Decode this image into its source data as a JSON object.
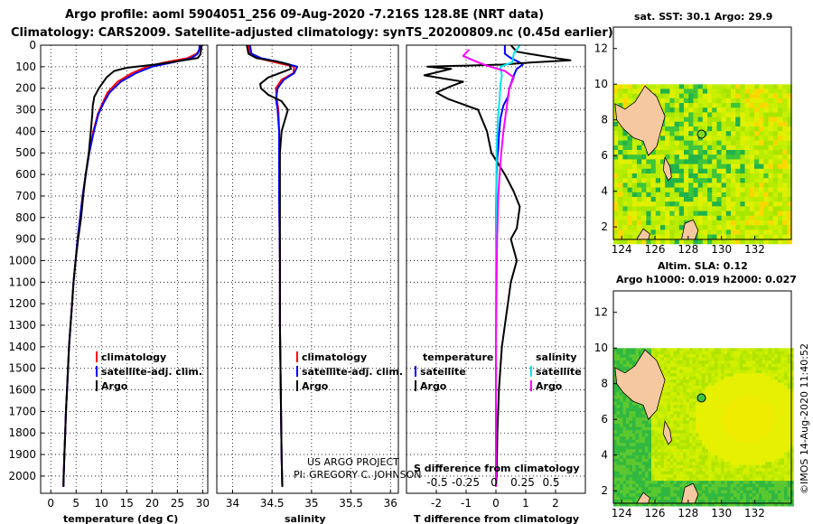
{
  "header": {
    "title_line1": "Argo profile: aoml 5904051_256 09-Aug-2020 -7.216S 128.8E (NRT data)",
    "title_line2": "Climatology: CARS2009. Satellite-adjusted climatology: synTS_20200809.nc (0.45d earlier)"
  },
  "colors": {
    "climatology": "#ff0000",
    "satellite_adj": "#0000ff",
    "argo": "#000000",
    "salinity_satellite": "#00e5ee",
    "salinity_argo": "#ff00ff",
    "land": "#f5c8a0",
    "no_data": "#ffffff"
  },
  "credits": {
    "project": "US ARGO PROJECT",
    "pi": "PI: GREGORY C. JOHNSON",
    "stamp": "©IMOS 14-Aug-2020 11:40:52"
  },
  "chart_data": [
    {
      "type": "line",
      "id": "temperature",
      "xlabel": "temperature (deg C)",
      "ylabel": "depth",
      "xlim": [
        -2,
        31
      ],
      "ylim": [
        2080,
        0
      ],
      "xticks": [
        0,
        5,
        10,
        15,
        20,
        25,
        30
      ],
      "yticks": [
        0,
        100,
        200,
        300,
        400,
        500,
        600,
        700,
        800,
        900,
        1000,
        1100,
        1200,
        1300,
        1400,
        1500,
        1600,
        1700,
        1800,
        1900,
        2000
      ],
      "legend": [
        "climatology",
        "satellite-adj. clim.",
        "Argo"
      ],
      "series": [
        {
          "name": "climatology",
          "color": "#ff0000",
          "points": [
            [
              29.6,
              0
            ],
            [
              29.4,
              20
            ],
            [
              28.8,
              40
            ],
            [
              27.0,
              60
            ],
            [
              22.5,
              80
            ],
            [
              19.0,
              100
            ],
            [
              16.0,
              130
            ],
            [
              13.2,
              170
            ],
            [
              11.2,
              220
            ],
            [
              10.2,
              270
            ],
            [
              9.3,
              320
            ],
            [
              8.4,
              400
            ],
            [
              7.6,
              500
            ],
            [
              6.9,
              600
            ],
            [
              6.3,
              700
            ],
            [
              5.8,
              800
            ],
            [
              5.3,
              900
            ],
            [
              4.9,
              1000
            ],
            [
              4.5,
              1100
            ],
            [
              4.2,
              1200
            ],
            [
              3.9,
              1300
            ],
            [
              3.6,
              1400
            ],
            [
              3.4,
              1500
            ],
            [
              3.2,
              1600
            ],
            [
              3.0,
              1700
            ],
            [
              2.85,
              1800
            ],
            [
              2.7,
              1900
            ],
            [
              2.55,
              2000
            ],
            [
              2.5,
              2050
            ]
          ]
        },
        {
          "name": "satellite-adj. clim.",
          "color": "#0000ff",
          "points": [
            [
              29.4,
              0
            ],
            [
              29.3,
              20
            ],
            [
              29.0,
              40
            ],
            [
              27.8,
              60
            ],
            [
              24.0,
              80
            ],
            [
              20.0,
              100
            ],
            [
              16.8,
              130
            ],
            [
              13.8,
              170
            ],
            [
              11.6,
              220
            ],
            [
              10.4,
              270
            ],
            [
              9.4,
              320
            ],
            [
              8.5,
              400
            ],
            [
              7.6,
              500
            ],
            [
              6.9,
              600
            ],
            [
              6.3,
              700
            ],
            [
              5.8,
              800
            ],
            [
              5.3,
              900
            ],
            [
              4.9,
              1000
            ],
            [
              4.5,
              1100
            ],
            [
              4.2,
              1200
            ],
            [
              3.9,
              1300
            ],
            [
              3.6,
              1400
            ],
            [
              3.4,
              1500
            ],
            [
              3.2,
              1600
            ],
            [
              3.0,
              1700
            ],
            [
              2.85,
              1800
            ],
            [
              2.7,
              1900
            ],
            [
              2.55,
              2000
            ],
            [
              2.5,
              2050
            ]
          ]
        },
        {
          "name": "Argo",
          "color": "#000000",
          "points": [
            [
              29.8,
              0
            ],
            [
              29.7,
              20
            ],
            [
              29.5,
              45
            ],
            [
              29.0,
              60
            ],
            [
              23.5,
              80
            ],
            [
              20.5,
              90
            ],
            [
              15.0,
              105
            ],
            [
              12.5,
              120
            ],
            [
              11.0,
              150
            ],
            [
              9.5,
              200
            ],
            [
              8.6,
              240
            ],
            [
              8.3,
              280
            ],
            [
              8.2,
              320
            ],
            [
              7.9,
              400
            ],
            [
              7.5,
              500
            ],
            [
              6.9,
              600
            ],
            [
              6.4,
              700
            ],
            [
              6.0,
              800
            ],
            [
              5.4,
              900
            ],
            [
              4.9,
              1000
            ],
            [
              4.5,
              1100
            ],
            [
              4.2,
              1200
            ],
            [
              3.9,
              1300
            ],
            [
              3.6,
              1400
            ],
            [
              3.4,
              1500
            ],
            [
              3.2,
              1600
            ],
            [
              3.0,
              1700
            ],
            [
              2.85,
              1800
            ],
            [
              2.7,
              1900
            ],
            [
              2.55,
              2000
            ],
            [
              2.5,
              2050
            ]
          ]
        }
      ]
    },
    {
      "type": "line",
      "id": "salinity",
      "xlabel": "salinity",
      "ylabel": "depth",
      "xlim": [
        33.8,
        36.1
      ],
      "ylim": [
        2080,
        0
      ],
      "xticks": [
        34,
        34.5,
        35,
        35.5,
        36
      ],
      "legend": [
        "climatology",
        "satellite-adj. clim.",
        "Argo"
      ],
      "series": [
        {
          "name": "climatology",
          "color": "#ff0000",
          "points": [
            [
              34.2,
              0
            ],
            [
              34.22,
              40
            ],
            [
              34.32,
              60
            ],
            [
              34.55,
              80
            ],
            [
              34.78,
              100
            ],
            [
              34.77,
              130
            ],
            [
              34.62,
              160
            ],
            [
              34.55,
              200
            ],
            [
              34.56,
              250
            ],
            [
              34.58,
              300
            ],
            [
              34.59,
              400
            ],
            [
              34.59,
              500
            ],
            [
              34.59,
              700
            ],
            [
              34.6,
              1000
            ],
            [
              34.6,
              1300
            ],
            [
              34.61,
              1600
            ],
            [
              34.62,
              1900
            ],
            [
              34.63,
              2050
            ]
          ]
        },
        {
          "name": "satellite-adj. clim.",
          "color": "#0000ff",
          "points": [
            [
              34.22,
              0
            ],
            [
              34.24,
              40
            ],
            [
              34.36,
              60
            ],
            [
              34.62,
              80
            ],
            [
              34.82,
              100
            ],
            [
              34.78,
              130
            ],
            [
              34.65,
              160
            ],
            [
              34.57,
              200
            ],
            [
              34.55,
              250
            ],
            [
              34.57,
              300
            ],
            [
              34.59,
              400
            ],
            [
              34.59,
              500
            ],
            [
              34.59,
              700
            ],
            [
              34.6,
              1000
            ],
            [
              34.6,
              1300
            ],
            [
              34.61,
              1600
            ],
            [
              34.62,
              1900
            ],
            [
              34.63,
              2050
            ]
          ]
        },
        {
          "name": "Argo",
          "color": "#000000",
          "points": [
            [
              34.18,
              0
            ],
            [
              34.2,
              40
            ],
            [
              34.3,
              60
            ],
            [
              34.55,
              75
            ],
            [
              34.72,
              90
            ],
            [
              34.74,
              110
            ],
            [
              34.45,
              150
            ],
            [
              34.35,
              180
            ],
            [
              34.36,
              200
            ],
            [
              34.45,
              230
            ],
            [
              34.62,
              260
            ],
            [
              34.7,
              300
            ],
            [
              34.66,
              350
            ],
            [
              34.62,
              400
            ],
            [
              34.6,
              500
            ],
            [
              34.6,
              600
            ],
            [
              34.6,
              800
            ],
            [
              34.6,
              1000
            ],
            [
              34.6,
              1300
            ],
            [
              34.61,
              1600
            ],
            [
              34.62,
              1900
            ],
            [
              34.63,
              2050
            ]
          ]
        }
      ]
    },
    {
      "type": "line",
      "id": "differences",
      "xlabel": "T difference from climatology",
      "xlabel_top": "S difference from climatology",
      "xlim": [
        -3,
        3
      ],
      "ylim": [
        2080,
        0
      ],
      "xticks": [
        -2,
        -1,
        0,
        1,
        2
      ],
      "xticks_top": [
        -0.5,
        -0.25,
        0,
        0.25,
        0.5
      ],
      "legend_temperature_title": "temperature",
      "legend_salinity_title": "salinity",
      "legend_temperature": [
        "satellite",
        "Argo"
      ],
      "legend_salinity": [
        "satellite",
        "Argo"
      ],
      "series": [
        {
          "name": "T satellite",
          "color": "#0000ff",
          "points": [
            [
              0.3,
              0
            ],
            [
              0.3,
              40
            ],
            [
              0.5,
              60
            ],
            [
              0.8,
              80
            ],
            [
              0.9,
              90
            ],
            [
              0.7,
              110
            ],
            [
              0.6,
              140
            ],
            [
              0.45,
              200
            ],
            [
              0.4,
              240
            ],
            [
              0.25,
              280
            ],
            [
              0.15,
              340
            ],
            [
              0.1,
              420
            ],
            [
              0.08,
              480
            ],
            [
              0.05,
              520
            ],
            [
              0.02,
              600
            ],
            [
              0.0,
              800
            ],
            [
              0.0,
              1400
            ],
            [
              0.0,
              2050
            ]
          ]
        },
        {
          "name": "T Argo",
          "color": "#000000",
          "points": [
            [
              0.5,
              0
            ],
            [
              0.7,
              30
            ],
            [
              1.1,
              40
            ],
            [
              2.0,
              60
            ],
            [
              2.5,
              70
            ],
            [
              1.2,
              80
            ],
            [
              0.2,
              90
            ],
            [
              -2.3,
              100
            ],
            [
              -1.5,
              110
            ],
            [
              -2.4,
              140
            ],
            [
              -1.1,
              170
            ],
            [
              -1.5,
              190
            ],
            [
              -2.0,
              220
            ],
            [
              -1.6,
              250
            ],
            [
              -0.6,
              300
            ],
            [
              -0.3,
              400
            ],
            [
              -0.15,
              500
            ],
            [
              0.3,
              600
            ],
            [
              0.6,
              680
            ],
            [
              0.8,
              750
            ],
            [
              0.7,
              850
            ],
            [
              0.5,
              900
            ],
            [
              0.7,
              1000
            ],
            [
              0.5,
              1100
            ],
            [
              0.4,
              1200
            ],
            [
              0.2,
              1400
            ],
            [
              0.1,
              1600
            ],
            [
              0.05,
              1800
            ],
            [
              0.02,
              2000
            ],
            [
              0.0,
              2050
            ]
          ]
        },
        {
          "name": "S satellite",
          "color": "#00e5ee",
          "points": [
            [
              0.8,
              0
            ],
            [
              0.6,
              40
            ],
            [
              0.55,
              80
            ],
            [
              0.15,
              100
            ],
            [
              0.2,
              140
            ],
            [
              0.15,
              180
            ],
            [
              0.12,
              250
            ],
            [
              0.06,
              350
            ],
            [
              0.02,
              500
            ],
            [
              0.01,
              700
            ],
            [
              0.0,
              1000
            ],
            [
              0.0,
              2050
            ]
          ]
        },
        {
          "name": "S Argo",
          "color": "#ff00ff",
          "points": [
            [
              -0.9,
              20
            ],
            [
              -1.1,
              50
            ],
            [
              -0.6,
              80
            ],
            [
              -0.2,
              100
            ],
            [
              0.3,
              120
            ],
            [
              0.6,
              150
            ],
            [
              0.45,
              200
            ],
            [
              0.35,
              300
            ],
            [
              0.25,
              400
            ],
            [
              0.18,
              500
            ],
            [
              0.12,
              600
            ],
            [
              0.08,
              700
            ],
            [
              0.04,
              900
            ],
            [
              0.02,
              1100
            ],
            [
              0.0,
              1400
            ],
            [
              0.0,
              2050
            ]
          ]
        }
      ]
    },
    {
      "type": "heatmap",
      "id": "sst_map",
      "title": "sat. SST: 30.1 Argo: 29.9",
      "xlim": [
        123.5,
        134.2
      ],
      "ylim": [
        1.3,
        13.2
      ],
      "xticks": [
        124,
        126,
        128,
        130,
        132
      ],
      "yticks": [
        2,
        4,
        6,
        8,
        10,
        12
      ],
      "data_top_lat": 10,
      "float_position": {
        "lon": 128.8,
        "lat": 7.2
      }
    },
    {
      "type": "heatmap",
      "id": "sla_map",
      "title_line1": "Altim. SLA: 0.12",
      "title_line2": "Argo h1000: 0.019 h2000: 0.027",
      "xlim": [
        123.5,
        134.2
      ],
      "ylim": [
        1.3,
        13.2
      ],
      "xticks": [
        124,
        126,
        128,
        130,
        132
      ],
      "yticks": [
        2,
        4,
        6,
        8,
        10,
        12
      ],
      "data_top_lat": 10,
      "float_position": {
        "lon": 128.8,
        "lat": 7.2
      }
    }
  ]
}
